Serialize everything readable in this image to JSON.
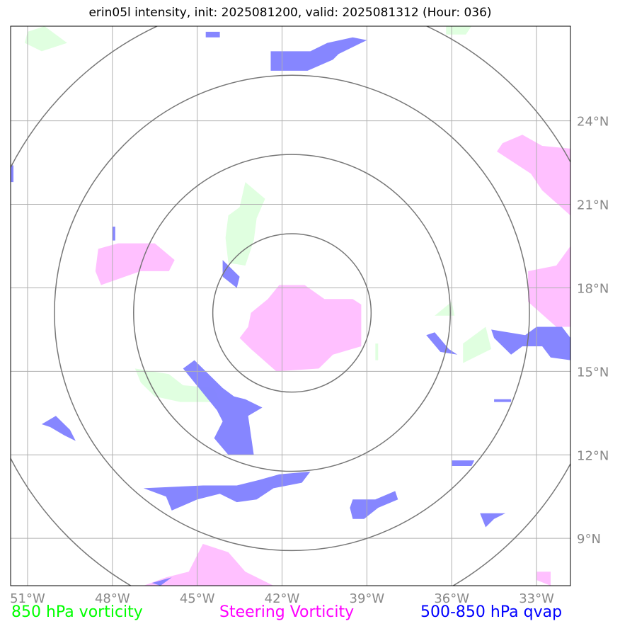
{
  "title": "erin05l intensity, init: 2025081200, valid: 2025081312 (Hour: 036)",
  "legend": [
    {
      "label": "850 hPa vorticity",
      "color": "#00ff00"
    },
    {
      "label": "Steering Vorticity",
      "color": "#ff00ff"
    },
    {
      "label": "500-850 hPa qvap",
      "color": "#0000ff"
    }
  ],
  "colors": {
    "vort850_fill": "#e0ffe0",
    "steering_fill": "#ffc0ff",
    "qvap_fill": "#8080ff",
    "grid": "#b0b0b0",
    "rings": "#777777",
    "ticks": "#888888"
  },
  "chart_data": {
    "type": "map",
    "grid": true,
    "xlim": [
      -51.6,
      -31.8
    ],
    "ylim": [
      7.3,
      27.4
    ],
    "x_ticks": [
      -51,
      -48,
      -45,
      -42,
      -39,
      -36,
      -33
    ],
    "x_tick_labels": [
      "51°W",
      "48°W",
      "45°W",
      "42°W",
      "39°W",
      "36°W",
      "33°W"
    ],
    "y_ticks": [
      9,
      12,
      15,
      18,
      21,
      24
    ],
    "y_tick_labels": [
      "9°N",
      "12°N",
      "15°N",
      "18°N",
      "21°N",
      "24°N"
    ],
    "center": {
      "lon": -41.65,
      "lat": 17.1
    },
    "range_rings_deg": [
      2.8,
      5.6,
      8.4,
      11.2
    ],
    "regions": {
      "vort850": [
        [
          [
            -51.0,
            27.2
          ],
          [
            -50.4,
            27.4
          ],
          [
            -49.6,
            26.8
          ],
          [
            -50.5,
            26.5
          ],
          [
            -51.1,
            26.8
          ]
        ],
        [
          [
            -36.2,
            27.4
          ],
          [
            -35.3,
            27.4
          ],
          [
            -35.5,
            27.1
          ],
          [
            -36.2,
            27.1
          ]
        ],
        [
          [
            -43.3,
            21.8
          ],
          [
            -42.6,
            21.2
          ],
          [
            -42.9,
            20.5
          ],
          [
            -43.0,
            19.7
          ],
          [
            -43.3,
            18.8
          ],
          [
            -43.9,
            18.9
          ],
          [
            -44.0,
            19.8
          ],
          [
            -43.9,
            20.6
          ],
          [
            -43.5,
            20.9
          ]
        ],
        [
          [
            -47.2,
            15.1
          ],
          [
            -46.0,
            14.9
          ],
          [
            -45.5,
            14.5
          ],
          [
            -44.4,
            14.4
          ],
          [
            -44.2,
            13.9
          ],
          [
            -45.6,
            13.9
          ],
          [
            -46.5,
            14.1
          ],
          [
            -47.0,
            14.6
          ]
        ],
        [
          [
            -35.9,
            17.0
          ],
          [
            -36.6,
            17.0
          ],
          [
            -36.0,
            17.5
          ]
        ],
        [
          [
            -34.6,
            15.8
          ],
          [
            -35.6,
            15.3
          ],
          [
            -35.6,
            16.0
          ],
          [
            -34.8,
            16.6
          ]
        ],
        [
          [
            -38.7,
            15.4
          ],
          [
            -38.6,
            15.4
          ],
          [
            -38.6,
            16.0
          ],
          [
            -38.7,
            16.0
          ]
        ]
      ],
      "steering": [
        [
          [
            -43.1,
            17.1
          ],
          [
            -42.5,
            17.6
          ],
          [
            -42.1,
            18.1
          ],
          [
            -41.2,
            18.1
          ],
          [
            -40.5,
            17.6
          ],
          [
            -39.5,
            17.6
          ],
          [
            -39.2,
            17.4
          ],
          [
            -39.2,
            15.9
          ],
          [
            -40.2,
            15.6
          ],
          [
            -40.7,
            15.1
          ],
          [
            -42.2,
            15.0
          ],
          [
            -43.1,
            15.8
          ],
          [
            -43.5,
            16.2
          ],
          [
            -43.2,
            16.6
          ]
        ],
        [
          [
            -48.5,
            19.4
          ],
          [
            -47.8,
            19.6
          ],
          [
            -46.5,
            19.6
          ],
          [
            -45.8,
            19.0
          ],
          [
            -46.0,
            18.6
          ],
          [
            -47.0,
            18.6
          ],
          [
            -48.4,
            18.1
          ],
          [
            -48.6,
            18.6
          ]
        ],
        [
          [
            -33.5,
            23.5
          ],
          [
            -32.8,
            23.1
          ],
          [
            -31.8,
            23.0
          ],
          [
            -31.8,
            20.6
          ],
          [
            -32.8,
            21.5
          ],
          [
            -33.2,
            22.1
          ],
          [
            -34.4,
            22.9
          ],
          [
            -34.2,
            23.2
          ]
        ],
        [
          [
            -33.3,
            18.6
          ],
          [
            -32.3,
            18.8
          ],
          [
            -31.8,
            19.5
          ],
          [
            -31.8,
            16.6
          ],
          [
            -32.3,
            16.6
          ],
          [
            -33.3,
            17.5
          ]
        ],
        [
          [
            -44.8,
            8.8
          ],
          [
            -43.9,
            8.5
          ],
          [
            -43.3,
            7.8
          ],
          [
            -42.3,
            7.3
          ],
          [
            -46.9,
            7.3
          ],
          [
            -46.1,
            7.6
          ],
          [
            -45.3,
            7.8
          ]
        ],
        [
          [
            -33.0,
            7.8
          ],
          [
            -32.5,
            7.8
          ],
          [
            -32.5,
            7.3
          ],
          [
            -33.0,
            7.5
          ]
        ]
      ],
      "qvap": [
        [
          [
            -42.4,
            26.5
          ],
          [
            -41.0,
            26.5
          ],
          [
            -40.4,
            26.8
          ],
          [
            -39.5,
            27.0
          ],
          [
            -39.0,
            26.9
          ],
          [
            -40.0,
            26.4
          ],
          [
            -40.2,
            26.2
          ],
          [
            -41.1,
            25.8
          ],
          [
            -42.4,
            25.8
          ]
        ],
        [
          [
            -44.7,
            27.2
          ],
          [
            -44.2,
            27.2
          ],
          [
            -44.2,
            27.0
          ],
          [
            -44.7,
            27.0
          ]
        ],
        [
          [
            -44.1,
            19.0
          ],
          [
            -43.5,
            18.4
          ],
          [
            -43.6,
            18.0
          ],
          [
            -44.1,
            18.4
          ]
        ],
        [
          [
            -45.1,
            15.4
          ],
          [
            -44.1,
            14.4
          ],
          [
            -43.7,
            14.1
          ],
          [
            -43.3,
            14.0
          ],
          [
            -42.7,
            13.7
          ],
          [
            -43.2,
            13.4
          ],
          [
            -43.0,
            12.0
          ],
          [
            -43.9,
            12.0
          ],
          [
            -44.4,
            12.6
          ],
          [
            -44.1,
            13.2
          ],
          [
            -44.3,
            13.6
          ],
          [
            -45.5,
            15.1
          ]
        ],
        [
          [
            -50.0,
            13.4
          ],
          [
            -49.5,
            12.9
          ],
          [
            -49.3,
            12.5
          ],
          [
            -49.7,
            12.7
          ],
          [
            -50.2,
            13.0
          ],
          [
            -50.5,
            13.1
          ]
        ],
        [
          [
            -36.6,
            16.4
          ],
          [
            -36.1,
            15.8
          ],
          [
            -35.8,
            15.6
          ],
          [
            -36.4,
            15.7
          ],
          [
            -36.9,
            16.3
          ]
        ],
        [
          [
            -34.6,
            16.5
          ],
          [
            -33.4,
            16.3
          ],
          [
            -33.0,
            16.6
          ],
          [
            -32.1,
            16.6
          ],
          [
            -31.8,
            16.2
          ],
          [
            -31.8,
            15.4
          ],
          [
            -32.5,
            15.5
          ],
          [
            -32.8,
            15.9
          ],
          [
            -33.5,
            15.9
          ],
          [
            -33.9,
            15.6
          ],
          [
            -34.5,
            16.2
          ]
        ],
        [
          [
            -46.9,
            10.8
          ],
          [
            -44.8,
            10.9
          ],
          [
            -43.6,
            10.9
          ],
          [
            -42.8,
            11.1
          ],
          [
            -42.1,
            11.3
          ],
          [
            -41.0,
            11.4
          ],
          [
            -41.3,
            11.0
          ],
          [
            -42.3,
            10.8
          ],
          [
            -42.9,
            10.4
          ],
          [
            -43.6,
            10.3
          ],
          [
            -44.2,
            10.6
          ],
          [
            -45.0,
            10.4
          ],
          [
            -45.9,
            10.0
          ],
          [
            -46.1,
            10.5
          ]
        ],
        [
          [
            -39.5,
            10.4
          ],
          [
            -38.7,
            10.4
          ],
          [
            -38.0,
            10.7
          ],
          [
            -37.9,
            10.4
          ],
          [
            -38.6,
            10.1
          ],
          [
            -39.1,
            9.7
          ],
          [
            -39.5,
            9.7
          ],
          [
            -39.6,
            10.1
          ]
        ],
        [
          [
            -35.0,
            9.9
          ],
          [
            -34.1,
            9.9
          ],
          [
            -34.5,
            9.7
          ],
          [
            -34.8,
            9.4
          ]
        ],
        [
          [
            -46.6,
            7.4
          ],
          [
            -45.9,
            7.6
          ],
          [
            -46.3,
            7.3
          ]
        ],
        [
          [
            -51.6,
            22.4
          ],
          [
            -51.5,
            22.4
          ],
          [
            -51.5,
            21.8
          ],
          [
            -51.6,
            21.8
          ]
        ],
        [
          [
            -48.0,
            20.2
          ],
          [
            -47.9,
            20.2
          ],
          [
            -47.9,
            19.7
          ],
          [
            -48.0,
            19.7
          ]
        ],
        [
          [
            -36.0,
            11.8
          ],
          [
            -35.2,
            11.8
          ],
          [
            -35.3,
            11.6
          ],
          [
            -36.0,
            11.6
          ]
        ],
        [
          [
            -34.5,
            14.0
          ],
          [
            -33.9,
            14.0
          ],
          [
            -33.9,
            13.9
          ],
          [
            -34.5,
            13.9
          ]
        ]
      ]
    }
  }
}
